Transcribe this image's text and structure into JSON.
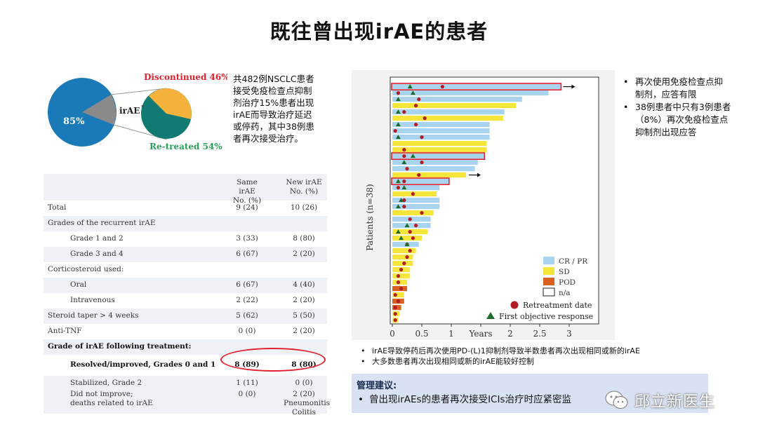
{
  "page": {
    "title": "既往曾出现irAE的患者"
  },
  "pie": {
    "main_label": "85%",
    "center_label": "irAE",
    "center_label_sup": "*",
    "discontinued_label": "Discontinued 46%",
    "retreated_label": "Re-treated 54%",
    "colors": {
      "main": "#1a7ab8",
      "irae": "#8a8a8a",
      "discontinued": "#f5b23d",
      "retreated": "#117a73",
      "discontinued_text": "#e0202c",
      "retreated_text": "#2aa05a"
    }
  },
  "summary": {
    "lines": [
      "共482例NSCLC患者",
      "接受免疫检查点抑制",
      "剂治疗15%患者出现",
      "irAE而导致治疗延迟",
      "或停药，其中38例患",
      "者再次接受治疗。"
    ]
  },
  "table": {
    "headers": {
      "col2_line1": "Same irAE",
      "col2_line2": "No. (%)",
      "col3_line1": "New irAE",
      "col3_line2": "No. (%)"
    },
    "rows": [
      {
        "label": "Total",
        "v1": "9 (24)",
        "v2": "10 (26)"
      },
      {
        "label": "Grades of the recurrent irAE",
        "v1": "",
        "v2": ""
      },
      {
        "label": "Grade 1 and 2",
        "v1": "3 (33)",
        "v2": "8 (80)"
      },
      {
        "label": "Grade 3 and 4",
        "v1": "6 (67)",
        "v2": "2 (20)"
      },
      {
        "label": "Corticosteroid used:",
        "v1": "",
        "v2": ""
      },
      {
        "label": "Oral",
        "v1": "6 (67)",
        "v2": "4 (40)"
      },
      {
        "label": "Intravenous",
        "v1": "2 (22)",
        "v2": "2 (20)"
      },
      {
        "label": "Steroid taper > 4 weeks",
        "v1": "5 (62)",
        "v2": "5 (50)"
      },
      {
        "label": "Anti-TNF",
        "v1": "0 (0)",
        "v2": "2 (20)"
      },
      {
        "label": "Grade of irAE following treatment:",
        "v1": "",
        "v2": ""
      },
      {
        "label": "Resolved/improved, Grades 0 and 1",
        "v1": "8 (89)",
        "v2": "8 (80)"
      },
      {
        "label": "Stabilized, Grade 2",
        "v1": "1 (11)",
        "v2": "0 (0)"
      },
      {
        "label": "Did not improve;",
        "label2": "deaths related to irAE",
        "v1": "0 (0)",
        "v2": "2 (20)",
        "v2b": "Pneumonitis",
        "v2c": "Colitis"
      }
    ]
  },
  "chart_data": {
    "type": "bar",
    "orientation": "horizontal",
    "ylabel": "Patients (n=38)",
    "xlabel": "Years",
    "x_ticks": [
      "0",
      "0.5",
      "1",
      "Years",
      "2",
      "2.5",
      "3"
    ],
    "xlim": [
      0,
      3.4
    ],
    "legend": [
      {
        "name": "CR / PR",
        "color": "#a9d4ef"
      },
      {
        "name": "SD",
        "color": "#f6e53a"
      },
      {
        "name": "POD",
        "color": "#d9601e"
      },
      {
        "name": "n/a",
        "color": "#ffffff"
      },
      {
        "name": "Retreatment date",
        "marker": "circle",
        "color": "#b21c24"
      },
      {
        "name": "First objective response",
        "marker": "triangle",
        "color": "#1e6b2a"
      }
    ],
    "legend_position": "bottom-right",
    "bars": [
      {
        "value": 2.85,
        "status": "CR / PR",
        "arrow": true,
        "boxed": true,
        "retreat": 0.85,
        "response": 0.3
      },
      {
        "value": 2.65,
        "status": "CR / PR",
        "retreat": 0.1,
        "response": 0.35
      },
      {
        "value": 2.2,
        "status": "CR / PR",
        "retreat": 0.45,
        "response": 0.1
      },
      {
        "value": 2.1,
        "status": "SD",
        "retreat": 0.4
      },
      {
        "value": 1.9,
        "status": "CR / PR",
        "retreat": 0.2,
        "response": 0.1
      },
      {
        "value": 1.88,
        "status": "SD",
        "retreat": 0.55
      },
      {
        "value": 1.65,
        "status": "CR / PR",
        "retreat": 0.4,
        "response": 0.1
      },
      {
        "value": 1.65,
        "status": "CR / PR",
        "retreat": 0.05
      },
      {
        "value": 1.65,
        "status": "CR / PR",
        "retreat": 0.5,
        "response": 0.1
      },
      {
        "value": 1.6,
        "status": "SD"
      },
      {
        "value": 1.6,
        "status": "SD",
        "retreat": 0.2
      },
      {
        "value": 1.55,
        "status": "CR / PR",
        "boxed": true,
        "retreat": 0.2,
        "response": 0.35
      },
      {
        "value": 1.45,
        "status": "CR / PR",
        "retreat": 0.5,
        "response": 0.2
      },
      {
        "value": 1.4,
        "status": "CR / PR",
        "retreat": 0.25
      },
      {
        "value": 1.25,
        "status": "SD",
        "arrow": true,
        "retreat": 0.45
      },
      {
        "value": 0.95,
        "status": "CR / PR",
        "boxed": true,
        "retreat": 0.2,
        "response": 0.1
      },
      {
        "value": 0.8,
        "status": "CR / PR",
        "retreat": 0.1,
        "response": 0.2
      },
      {
        "value": 0.75,
        "status": "SD",
        "retreat": 0.35
      },
      {
        "value": 0.8,
        "status": "CR / PR",
        "retreat": 0.2,
        "response": 0.15
      },
      {
        "value": 0.8,
        "status": "CR / PR",
        "retreat": 0.2,
        "response": 0.1
      },
      {
        "value": 0.7,
        "status": "SD",
        "retreat": 0.5
      },
      {
        "value": 0.65,
        "status": "CR / PR",
        "retreat": 0.3
      },
      {
        "value": 0.65,
        "status": "CR / PR",
        "retreat": 0.4,
        "response": 0.25
      },
      {
        "value": 0.6,
        "status": "SD",
        "retreat": 0.3,
        "response": 0.1
      },
      {
        "value": 0.5,
        "status": "SD",
        "retreat": 0.35,
        "response": 0.15
      },
      {
        "value": 0.45,
        "status": "CR / PR",
        "retreat": 0.25,
        "response": 0.25
      },
      {
        "value": 0.4,
        "status": "SD",
        "retreat": 0.3
      },
      {
        "value": 0.35,
        "status": "SD",
        "retreat": 0.25
      },
      {
        "value": 0.35,
        "status": "SD",
        "retreat": 0.2
      },
      {
        "value": 0.3,
        "status": "SD",
        "retreat": 0.15
      },
      {
        "value": 0.3,
        "status": "SD",
        "retreat": 0.1
      },
      {
        "value": 0.25,
        "status": "SD",
        "retreat": 0.1
      },
      {
        "value": 0.25,
        "status": "POD",
        "retreat": 0.15
      },
      {
        "value": 0.2,
        "status": "SD",
        "retreat": 0.05
      },
      {
        "value": 0.2,
        "status": "POD",
        "retreat": 0.1
      },
      {
        "value": 0.15,
        "status": "POD",
        "retreat": 0.05
      },
      {
        "value": 0.12,
        "status": "SD",
        "retreat": 0.05
      },
      {
        "value": 0.1,
        "status": "SD",
        "retreat": 0.05
      }
    ]
  },
  "notes": {
    "bullet": "•",
    "items": [
      {
        "lines": [
          "再次使用免疫检查点抑",
          "制剂，应答有限"
        ]
      },
      {
        "lines": [
          "38例患者中只有3例患者",
          "（8%）再次免疫检查点",
          "抑制剂出现应答"
        ]
      }
    ]
  },
  "bottom_notes": {
    "items": [
      "irAE导致停药后再次使用PD-(L)1抑制剂导致半数患者再次出现相同或新的irAE",
      "大多数患者再次出现相同或新的irAE能较好控制"
    ]
  },
  "management": {
    "title": "管理建议:",
    "item": "曾出现irAEs的患者再次接受ICIs治疗时应紧密监"
  },
  "watermark": {
    "text": "邱立新医生"
  }
}
